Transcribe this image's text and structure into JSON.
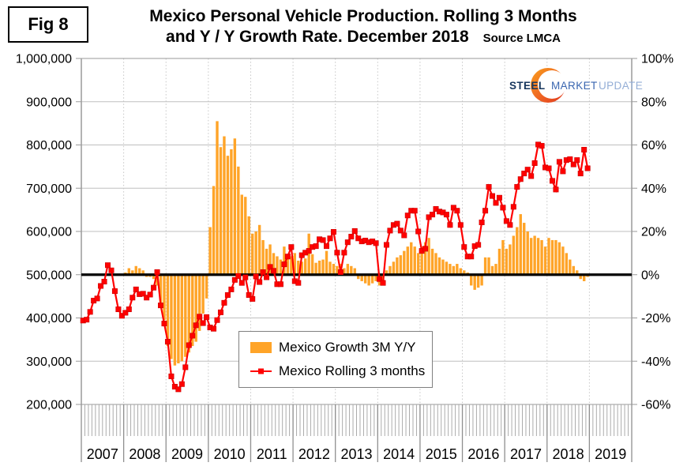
{
  "figure_label": "Fig 8",
  "title_line1": "Mexico Personal Vehicle Production. Rolling 3 Months",
  "title_line2": "and Y / Y Growth Rate. December 2018",
  "source": "Source LMCA",
  "logo": {
    "steel": "STEEL",
    "market": "MARKET",
    "update": "UPDATE"
  },
  "legend": [
    {
      "label": "Mexico Growth 3M Y/Y",
      "type": "bar",
      "color": "#ffa428"
    },
    {
      "label": "Mexico Rolling 3 months",
      "type": "line",
      "color": "#ff0000"
    }
  ],
  "chart_data": {
    "type": "combo-bar-line",
    "x_years": [
      "2007",
      "2008",
      "2009",
      "2010",
      "2011",
      "2012",
      "2013",
      "2014",
      "2015",
      "2016",
      "2017",
      "2018",
      "2019"
    ],
    "months_span": 156,
    "left_axis": {
      "title": "",
      "min": 200000,
      "max": 1000000,
      "ticks": [
        {
          "value": 1000000,
          "label": "1,000,000"
        },
        {
          "value": 900000,
          "label": "900,000"
        },
        {
          "value": 800000,
          "label": "800,000"
        },
        {
          "value": 700000,
          "label": "700,000"
        },
        {
          "value": 600000,
          "label": "600,000"
        },
        {
          "value": 500000,
          "label": "500,000"
        },
        {
          "value": 400000,
          "label": "400,000"
        },
        {
          "value": 300000,
          "label": "300,000"
        },
        {
          "value": 200000,
          "label": "200,000"
        }
      ]
    },
    "right_axis": {
      "title": "",
      "min": -60,
      "max": 100,
      "ticks": [
        {
          "value": 100,
          "label": "100%"
        },
        {
          "value": 80,
          "label": "80%"
        },
        {
          "value": 60,
          "label": "60%"
        },
        {
          "value": 40,
          "label": "40%"
        },
        {
          "value": 20,
          "label": "20%"
        },
        {
          "value": 0,
          "label": "0%"
        },
        {
          "value": -20,
          "label": "-20%"
        },
        {
          "value": -40,
          "label": "-40%"
        },
        {
          "value": -60,
          "label": "-60%"
        }
      ]
    },
    "zero_line_value": 500000,
    "grid": {
      "horizontal": "solid",
      "vertical_year_boundaries": "dotted"
    },
    "legend_position": "inside-bottom-left",
    "series": [
      {
        "name": "Mexico Growth 3M Y/Y",
        "type": "bar",
        "axis": "right",
        "unit": "%",
        "color": "#ffa428",
        "start_month_index": 12,
        "start_label": "Jan 2008",
        "values": [
          1,
          3,
          2,
          4,
          3,
          2,
          -1,
          -1,
          -2,
          -5,
          -13,
          -21,
          -33,
          -39,
          -42,
          -41,
          -40,
          -38,
          -36,
          -33,
          -31,
          -26,
          -18,
          -11,
          22,
          41,
          71,
          59,
          64,
          55,
          58,
          63,
          50,
          37,
          36,
          27,
          19,
          20,
          23,
          16,
          12,
          14,
          10,
          8.5,
          7,
          13,
          9.5,
          8.5,
          10,
          6.5,
          6,
          7.5,
          19,
          9.5,
          5.5,
          6.5,
          7,
          11,
          6,
          5,
          4,
          5,
          3,
          5,
          4,
          3,
          -2,
          -3,
          -4,
          -5,
          -4,
          -3,
          -5,
          -3,
          2,
          4,
          6,
          8,
          9,
          11,
          13,
          15,
          13,
          10,
          13,
          15,
          17,
          12,
          10,
          8,
          7,
          6,
          5,
          4,
          5,
          3,
          2,
          1,
          -5,
          -7,
          -6,
          -5,
          8,
          8,
          4,
          5,
          12,
          16,
          12,
          14,
          18,
          22,
          28,
          24,
          20,
          17,
          18,
          17,
          16,
          13,
          17,
          16,
          16,
          15,
          13,
          10,
          7,
          4,
          2,
          -2,
          -3,
          -1
        ]
      },
      {
        "name": "Mexico Rolling 3 months",
        "type": "line",
        "axis": "left",
        "unit": "vehicles",
        "color": "#ff0000",
        "start_month_index": 0,
        "start_label": "Jan 2007",
        "values": [
          394000,
          396000,
          414000,
          440000,
          445000,
          474000,
          484000,
          522000,
          510000,
          462000,
          420000,
          405000,
          412000,
          420000,
          447000,
          466000,
          455000,
          456000,
          447000,
          454000,
          470000,
          506000,
          429000,
          387000,
          345000,
          265000,
          241000,
          235000,
          247000,
          286000,
          337000,
          359000,
          383000,
          403000,
          388000,
          402000,
          378000,
          375000,
          395000,
          413000,
          435000,
          453000,
          466000,
          488000,
          497000,
          481000,
          494000,
          453000,
          444000,
          496000,
          483000,
          506000,
          494000,
          518000,
          509000,
          478000,
          478000,
          524000,
          542000,
          564000,
          485000,
          481000,
          545000,
          551000,
          555000,
          564000,
          566000,
          582000,
          580000,
          566000,
          584000,
          599000,
          551000,
          506000,
          551000,
          575000,
          588000,
          601000,
          584000,
          577000,
          579000,
          575000,
          577000,
          573000,
          490000,
          481000,
          569000,
          602000,
          615000,
          618000,
          602000,
          591000,
          637000,
          648000,
          648000,
          600000,
          555000,
          560000,
          633000,
          639000,
          652000,
          646000,
          644000,
          639000,
          615000,
          655000,
          648000,
          615000,
          564000,
          542000,
          542000,
          566000,
          569000,
          621000,
          648000,
          703000,
          682000,
          666000,
          678000,
          655000,
          624000,
          615000,
          657000,
          703000,
          721000,
          734000,
          743000,
          728000,
          758000,
          801000,
          798000,
          748000,
          746000,
          717000,
          697000,
          761000,
          739000,
          765000,
          767000,
          755000,
          765000,
          734000,
          789000,
          746000
        ]
      }
    ]
  }
}
